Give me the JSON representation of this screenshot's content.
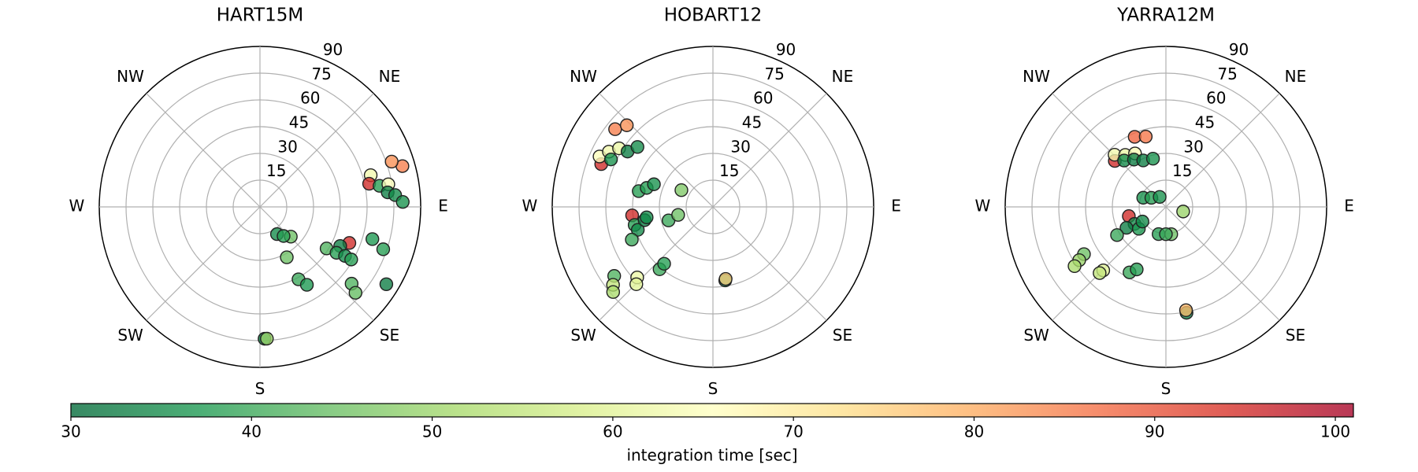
{
  "chart_data": [
    {
      "type": "polar_scatter",
      "title": "HART15M",
      "theta": [
        74,
        71,
        74,
        78,
        80,
        80,
        83.5,
        85,
        88,
        148,
        134,
        141,
        112,
        122,
        116,
        121,
        120,
        120,
        106,
        109,
        152,
        152,
        149,
        130,
        132,
        121.5,
        178,
        177
      ],
      "r": [
        83,
        78,
        64.5,
        62.5,
        68,
        73,
        72,
        76,
        80,
        18,
        24,
        21,
        54,
        44,
        50,
        50,
        55,
        59,
        65.5,
        73,
        32,
        46,
        51,
        67,
        72,
        83,
        74,
        74
      ],
      "c": [
        85,
        83,
        63,
        95,
        38,
        65,
        33,
        35,
        36,
        35,
        45,
        38,
        95,
        42,
        33,
        38,
        35,
        38,
        37,
        38,
        45,
        40,
        37,
        42,
        44,
        33,
        33,
        50
      ],
      "xticks": [
        {
          "value": 0,
          "label": null
        },
        {
          "value": 45,
          "label": "NE"
        },
        {
          "value": 90,
          "label": "E"
        },
        {
          "value": 135,
          "label": "SE"
        },
        {
          "value": 180,
          "label": "S"
        },
        {
          "value": 225,
          "label": "SW"
        },
        {
          "value": 270,
          "label": "W"
        },
        {
          "value": 315,
          "label": "NW"
        }
      ],
      "ylim": [
        0,
        90
      ],
      "yticks": [
        15,
        30,
        45,
        60,
        75,
        90
      ]
    },
    {
      "type": "polar_scatter",
      "title": "HOBART12",
      "theta": [
        308.5,
        313.5,
        291,
        294,
        298,
        302,
        295,
        303,
        308.5,
        282,
        286,
        291,
        298,
        264,
        257,
        253,
        248,
        259,
        261,
        253,
        257,
        235,
        232,
        229.5,
        227,
        224.7,
        220.5,
        220.6,
        170.5,
        170
      ],
      "r": [
        70,
        66.5,
        67,
        69.5,
        66,
        62,
        63,
        57,
        54,
        42.5,
        38.6,
        35.4,
        20,
        45.5,
        45,
        44,
        49,
        39,
        37.6,
        26,
        20,
        67.5,
        71,
        73.5,
        58,
        61,
        46,
        42,
        41.8,
        41
      ],
      "c": [
        85,
        83,
        95,
        65,
        63,
        62,
        36,
        33,
        35,
        38,
        38,
        36,
        47,
        95,
        38,
        35,
        40,
        33,
        35,
        40,
        45,
        42,
        55,
        52,
        62,
        60,
        40,
        38,
        33,
        75
      ],
      "xticks": [
        {
          "value": 0,
          "label": null
        },
        {
          "value": 45,
          "label": "NE"
        },
        {
          "value": 90,
          "label": "E"
        },
        {
          "value": 135,
          "label": "SE"
        },
        {
          "value": 180,
          "label": "S"
        },
        {
          "value": 225,
          "label": "SW"
        },
        {
          "value": 270,
          "label": "W"
        },
        {
          "value": 315,
          "label": "NW"
        }
      ],
      "ylim": [
        0,
        90
      ],
      "yticks": [
        15,
        30,
        45,
        60,
        75,
        90
      ]
    },
    {
      "type": "polar_scatter",
      "title": "YARRA12M",
      "theta": [
        336,
        344,
        312,
        315.5,
        322,
        330,
        318,
        326,
        334,
        345,
        292,
        302,
        328,
        105,
        256,
        241.5,
        242,
        231,
        240,
        238,
        195,
        169,
        180,
        240,
        238.4,
        237,
        224.6,
        225,
        209,
        205,
        169,
        169
      ],
      "r": [
        43,
        41,
        38.5,
        41,
        37,
        34.6,
        35,
        32,
        29,
        28,
        13.7,
        9.6,
        6.6,
        10,
        21.4,
        20,
        25,
        19.5,
        31.6,
        15.5,
        15.8,
        15.6,
        15.3,
        53,
        57,
        61,
        50,
        52.5,
        42,
        38.7,
        60.5,
        59
      ],
      "c": [
        88,
        86,
        95,
        63,
        62,
        64,
        35,
        33,
        33,
        36,
        36,
        38,
        36,
        50,
        95,
        35,
        33,
        37,
        40,
        35,
        38,
        45,
        40,
        45,
        50,
        52,
        60,
        55,
        40,
        38,
        33,
        78
      ],
      "xticks": [
        {
          "value": 0,
          "label": null
        },
        {
          "value": 45,
          "label": "NE"
        },
        {
          "value": 90,
          "label": "E"
        },
        {
          "value": 135,
          "label": "SE"
        },
        {
          "value": 180,
          "label": "S"
        },
        {
          "value": 225,
          "label": "SW"
        },
        {
          "value": 270,
          "label": "W"
        },
        {
          "value": 315,
          "label": "NW"
        }
      ],
      "ylim": [
        0,
        90
      ],
      "yticks": [
        15,
        30,
        45,
        60,
        75,
        90
      ]
    },
    {
      "type": "colorbar",
      "label": "integration time [sec]",
      "clim": [
        30,
        101
      ],
      "ticks": [
        30,
        40,
        50,
        60,
        70,
        80,
        90,
        100
      ],
      "cmap": [
        "#006837",
        "#1a9850",
        "#66bd63",
        "#a6d96a",
        "#d9ef8b",
        "#ffffbf",
        "#fee08b",
        "#fdae61",
        "#f46d43",
        "#d73027",
        "#a50026"
      ],
      "alpha": 0.78
    }
  ]
}
